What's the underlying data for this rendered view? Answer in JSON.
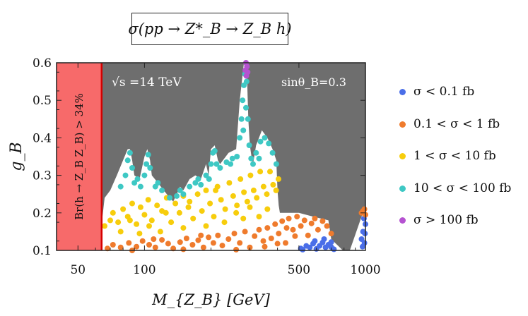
{
  "chart_data": {
    "type": "scatter",
    "title": "σ(pp → Z*_B → Z_B h)",
    "xlabel": "M_{Z_B} [GeV]",
    "ylabel": "g_B",
    "xscale": "log",
    "xlim": [
      40,
      1000
    ],
    "ylim": [
      0.1,
      0.6
    ],
    "x_ticks": [
      50,
      100,
      500,
      1000
    ],
    "y_ticks": [
      0.1,
      0.2,
      0.3,
      0.4,
      0.5,
      0.6
    ],
    "annotations": {
      "energy": "√s =14 TeV",
      "angle": "sinθ_B=0.3",
      "excluded_region_label": "Br(h → Z_B Z_B) > 34%",
      "excluded_region_xmax": 64
    },
    "excluded_by_branching_ratio": {
      "x_range": [
        40,
        64
      ],
      "color": "#f76a6a"
    },
    "grey_region_boundary_x": [
      64,
      66,
      70,
      75,
      80,
      84,
      86,
      88,
      90,
      95,
      100,
      103,
      106,
      108,
      115,
      130,
      135,
      140,
      145,
      150,
      160,
      170,
      180,
      190,
      195,
      200,
      208,
      215,
      220,
      240,
      260,
      270,
      282,
      290,
      295,
      300,
      305,
      310,
      320,
      340,
      360,
      380,
      395,
      400,
      405,
      410,
      500,
      580,
      680,
      700,
      760,
      790,
      850,
      960,
      1000
    ],
    "grey_region_boundary_y": [
      0.17,
      0.24,
      0.26,
      0.3,
      0.34,
      0.37,
      0.37,
      0.34,
      0.3,
      0.29,
      0.35,
      0.37,
      0.34,
      0.3,
      0.28,
      0.24,
      0.23,
      0.25,
      0.27,
      0.26,
      0.29,
      0.3,
      0.29,
      0.33,
      0.3,
      0.37,
      0.38,
      0.34,
      0.33,
      0.36,
      0.37,
      0.5,
      0.6,
      0.6,
      0.45,
      0.38,
      0.35,
      0.33,
      0.38,
      0.42,
      0.4,
      0.37,
      0.34,
      0.26,
      0.22,
      0.2,
      0.2,
      0.19,
      0.18,
      0.13,
      0.11,
      0.1,
      0.1,
      0.19,
      0.21
    ],
    "series": [
      {
        "name": "σ < 0.1 fb",
        "color": "#4a6ee8",
        "points": [
          [
            510,
            0.105
          ],
          [
            540,
            0.112
          ],
          [
            560,
            0.108
          ],
          [
            580,
            0.118
          ],
          [
            600,
            0.104
          ],
          [
            620,
            0.112
          ],
          [
            640,
            0.121
          ],
          [
            660,
            0.108
          ],
          [
            680,
            0.115
          ],
          [
            700,
            0.109
          ],
          [
            720,
            0.103
          ],
          [
            520,
            0.102
          ],
          [
            590,
            0.125
          ],
          [
            650,
            0.13
          ],
          [
            700,
            0.122
          ],
          [
            960,
            0.13
          ],
          [
            975,
            0.15
          ],
          [
            990,
            0.12
          ],
          [
            1000,
            0.17
          ],
          [
            985,
            0.185
          ],
          [
            970,
            0.11
          ],
          [
            995,
            0.145
          ]
        ]
      },
      {
        "name": "0.1 < σ < 1 fb",
        "color": "#ef7b2d",
        "points": [
          [
            68,
            0.105
          ],
          [
            72,
            0.115
          ],
          [
            78,
            0.108
          ],
          [
            85,
            0.12
          ],
          [
            92,
            0.11
          ],
          [
            98,
            0.125
          ],
          [
            105,
            0.115
          ],
          [
            112,
            0.108
          ],
          [
            120,
            0.128
          ],
          [
            128,
            0.118
          ],
          [
            135,
            0.105
          ],
          [
            145,
            0.122
          ],
          [
            155,
            0.132
          ],
          [
            165,
            0.115
          ],
          [
            175,
            0.127
          ],
          [
            185,
            0.108
          ],
          [
            195,
            0.135
          ],
          [
            205,
            0.12
          ],
          [
            215,
            0.14
          ],
          [
            225,
            0.113
          ],
          [
            240,
            0.13
          ],
          [
            255,
            0.145
          ],
          [
            270,
            0.12
          ],
          [
            285,
            0.15
          ],
          [
            300,
            0.108
          ],
          [
            315,
            0.138
          ],
          [
            330,
            0.155
          ],
          [
            345,
            0.125
          ],
          [
            360,
            0.16
          ],
          [
            375,
            0.132
          ],
          [
            390,
            0.17
          ],
          [
            405,
            0.145
          ],
          [
            420,
            0.178
          ],
          [
            435,
            0.12
          ],
          [
            450,
            0.185
          ],
          [
            470,
            0.155
          ],
          [
            490,
            0.19
          ],
          [
            510,
            0.165
          ],
          [
            530,
            0.18
          ],
          [
            550,
            0.14
          ],
          [
            570,
            0.172
          ],
          [
            590,
            0.185
          ],
          [
            610,
            0.155
          ],
          [
            640,
            0.178
          ],
          [
            670,
            0.165
          ],
          [
            700,
            0.145
          ],
          [
            480,
            0.138
          ],
          [
            440,
            0.16
          ],
          [
            400,
            0.118
          ],
          [
            350,
            0.11
          ],
          [
            260,
            0.102
          ],
          [
            180,
            0.14
          ],
          [
            150,
            0.103
          ],
          [
            110,
            0.13
          ],
          [
            88,
            0.1
          ],
          [
            960,
            0.2
          ],
          [
            990,
            0.21
          ],
          [
            1000,
            0.195
          ],
          [
            975,
            0.205
          ]
        ]
      },
      {
        "name": "1 < σ < 10 fb",
        "color": "#f7cd0c",
        "points": [
          [
            66,
            0.165
          ],
          [
            70,
            0.18
          ],
          [
            72,
            0.2
          ],
          [
            76,
            0.175
          ],
          [
            80,
            0.21
          ],
          [
            84,
            0.19
          ],
          [
            88,
            0.225
          ],
          [
            92,
            0.17
          ],
          [
            96,
            0.215
          ],
          [
            100,
            0.195
          ],
          [
            104,
            0.235
          ],
          [
            108,
            0.18
          ],
          [
            114,
            0.22
          ],
          [
            120,
            0.205
          ],
          [
            126,
            0.24
          ],
          [
            132,
            0.175
          ],
          [
            138,
            0.225
          ],
          [
            144,
            0.2
          ],
          [
            150,
            0.245
          ],
          [
            158,
            0.215
          ],
          [
            166,
            0.185
          ],
          [
            174,
            0.25
          ],
          [
            182,
            0.205
          ],
          [
            190,
            0.26
          ],
          [
            198,
            0.225
          ],
          [
            206,
            0.19
          ],
          [
            214,
            0.27
          ],
          [
            222,
            0.235
          ],
          [
            232,
            0.21
          ],
          [
            242,
            0.28
          ],
          [
            252,
            0.245
          ],
          [
            262,
            0.22
          ],
          [
            272,
            0.29
          ],
          [
            282,
            0.255
          ],
          [
            292,
            0.23
          ],
          [
            302,
            0.3
          ],
          [
            312,
            0.26
          ],
          [
            322,
            0.24
          ],
          [
            334,
            0.31
          ],
          [
            346,
            0.27
          ],
          [
            358,
            0.25
          ],
          [
            370,
            0.31
          ],
          [
            382,
            0.275
          ],
          [
            394,
            0.26
          ],
          [
            404,
            0.29
          ],
          [
            330,
            0.19
          ],
          [
            280,
            0.185
          ],
          [
            230,
            0.175
          ],
          [
            190,
            0.165
          ],
          [
            150,
            0.16
          ],
          [
            118,
            0.15
          ],
          [
            95,
            0.145
          ],
          [
            78,
            0.15
          ],
          [
            260,
            0.2
          ],
          [
            360,
            0.21
          ],
          [
            210,
            0.26
          ],
          [
            160,
            0.23
          ],
          [
            125,
            0.2
          ],
          [
            105,
            0.165
          ],
          [
            86,
            0.18
          ],
          [
            300,
            0.215
          ]
        ]
      },
      {
        "name": "10 < σ < 100 fb",
        "color": "#3ec8c4",
        "points": [
          [
            78,
            0.27
          ],
          [
            82,
            0.3
          ],
          [
            84,
            0.34
          ],
          [
            86,
            0.36
          ],
          [
            88,
            0.32
          ],
          [
            90,
            0.28
          ],
          [
            96,
            0.27
          ],
          [
            100,
            0.3
          ],
          [
            102,
            0.33
          ],
          [
            104,
            0.355
          ],
          [
            106,
            0.32
          ],
          [
            112,
            0.27
          ],
          [
            120,
            0.26
          ],
          [
            130,
            0.24
          ],
          [
            140,
            0.245
          ],
          [
            150,
            0.25
          ],
          [
            160,
            0.27
          ],
          [
            170,
            0.28
          ],
          [
            180,
            0.275
          ],
          [
            190,
            0.3
          ],
          [
            196,
            0.29
          ],
          [
            200,
            0.33
          ],
          [
            204,
            0.36
          ],
          [
            208,
            0.365
          ],
          [
            212,
            0.33
          ],
          [
            220,
            0.32
          ],
          [
            235,
            0.335
          ],
          [
            250,
            0.345
          ],
          [
            262,
            0.35
          ],
          [
            270,
            0.4
          ],
          [
            275,
            0.45
          ],
          [
            278,
            0.5
          ],
          [
            282,
            0.54
          ],
          [
            285,
            0.57
          ],
          [
            290,
            0.55
          ],
          [
            294,
            0.45
          ],
          [
            298,
            0.38
          ],
          [
            304,
            0.345
          ],
          [
            310,
            0.33
          ],
          [
            320,
            0.36
          ],
          [
            335,
            0.39
          ],
          [
            350,
            0.4
          ],
          [
            365,
            0.385
          ],
          [
            380,
            0.36
          ],
          [
            395,
            0.33
          ],
          [
            93,
            0.29
          ],
          [
            115,
            0.28
          ],
          [
            145,
            0.26
          ],
          [
            175,
            0.29
          ],
          [
            245,
            0.33
          ],
          [
            288,
            0.48
          ],
          [
            280,
            0.42
          ],
          [
            330,
            0.345
          ]
        ]
      },
      {
        "name": "σ > 100 fb",
        "color": "#b552d1",
        "points": [
          [
            286,
            0.58
          ],
          [
            288,
            0.6
          ],
          [
            291,
            0.59
          ],
          [
            293,
            0.575
          ],
          [
            289,
            0.565
          ]
        ]
      }
    ]
  }
}
